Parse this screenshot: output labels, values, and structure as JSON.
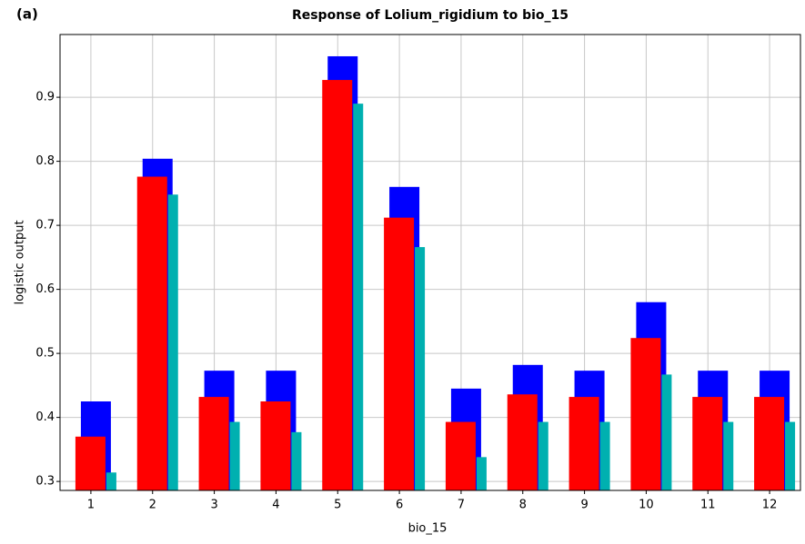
{
  "chart_data": {
    "type": "bar",
    "panel_label": "(a)",
    "title": "Response of Lolium_rigidium to bio_15",
    "x_label": "bio_15",
    "y_label": "logistic output",
    "categories": [
      "1",
      "2",
      "3",
      "4",
      "5",
      "6",
      "7",
      "8",
      "9",
      "10",
      "11",
      "12"
    ],
    "series": [
      {
        "color": "#0000ff",
        "values": [
          0.425,
          0.804,
          0.473,
          0.473,
          0.964,
          0.76,
          0.445,
          0.482,
          0.473,
          0.58,
          0.473,
          0.473
        ]
      },
      {
        "color": "#00b0b0",
        "values": [
          0.314,
          0.748,
          0.393,
          0.377,
          0.89,
          0.666,
          0.338,
          0.393,
          0.393,
          0.467,
          0.393,
          0.393
        ]
      },
      {
        "color": "#ff0000",
        "values": [
          0.37,
          0.776,
          0.432,
          0.425,
          0.927,
          0.712,
          0.393,
          0.436,
          0.432,
          0.524,
          0.432,
          0.432
        ]
      }
    ],
    "ylim": [
      0.286,
      0.998
    ],
    "yticks": [
      0.3,
      0.4,
      0.5,
      0.6,
      0.7,
      0.8,
      0.9
    ],
    "grid": true
  }
}
